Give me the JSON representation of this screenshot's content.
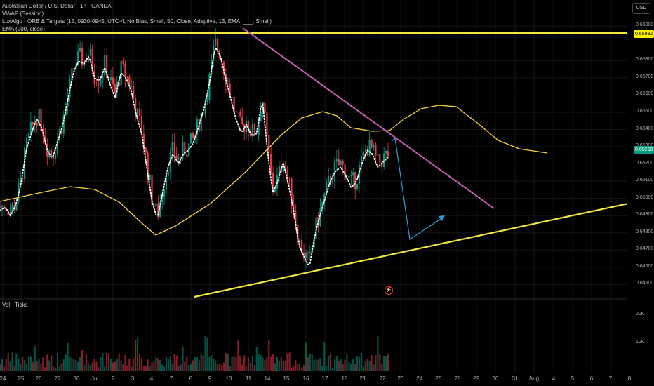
{
  "legend": {
    "symbol": "Australian Dollar / U.S. Dollar · 1h · OANDA",
    "vwap": "VWAP (Session)",
    "luxalgo": "LuxAlgo - ORB & Targets (15, 0930-0945, UTC-4, No Bias, Small, 50, Close, Adaptive, 13, EMA, ___, Small)",
    "ema": "EMA (200, close)"
  },
  "volume_label": "Vol · Ticks",
  "currency": "USD",
  "price_tags": {
    "resistance": {
      "label": "0.65932",
      "color": "#fff200",
      "text_color": "#000000"
    },
    "last": {
      "label": "0.65258",
      "color": "#089981",
      "text_color": "#ffffff"
    }
  },
  "marker_icon": "lightning-icon",
  "colors": {
    "up": "#089981",
    "down": "#f23645",
    "yellow": "#f0e641",
    "ema": "#f5d33a",
    "trendline_pink": "#c75fb0",
    "projection": "#2a9fd6",
    "vwap": "#ffffff"
  },
  "chart_data": {
    "type": "candlestick",
    "x_ticks": [
      "24",
      "25",
      "26",
      "27",
      "30",
      "Jul",
      "2",
      "3",
      "4",
      "7",
      "8",
      "9",
      "10",
      "11",
      "14",
      "15",
      "16",
      "17",
      "18",
      "21",
      "22",
      "23",
      "24",
      "25",
      "28",
      "29",
      "30",
      "31",
      "Aug",
      "4",
      "5",
      "6",
      "7",
      "8"
    ],
    "y_ticks": [
      "0.66000",
      "0.65800",
      "0.65700",
      "0.65600",
      "0.65500",
      "0.65400",
      "0.65300",
      "0.65200",
      "0.65100",
      "0.65000",
      "0.64900",
      "0.64800",
      "0.64700",
      "0.64600",
      "0.64500"
    ],
    "ylim": [
      0.6442,
      0.6605
    ],
    "volume_ticks": [
      "20K",
      "10K"
    ],
    "price_close_series": [
      0.6495,
      0.6497,
      0.6492,
      0.6498,
      0.651,
      0.653,
      0.654,
      0.6548,
      0.6543,
      0.653,
      0.6525,
      0.6535,
      0.6545,
      0.656,
      0.6575,
      0.6582,
      0.658,
      0.6585,
      0.6572,
      0.657,
      0.6578,
      0.6568,
      0.656,
      0.6575,
      0.6572,
      0.6565,
      0.655,
      0.654,
      0.652,
      0.65,
      0.649,
      0.6505,
      0.652,
      0.6528,
      0.6522,
      0.6528,
      0.653,
      0.6535,
      0.6545,
      0.6555,
      0.657,
      0.659,
      0.6585,
      0.6572,
      0.656,
      0.6548,
      0.654,
      0.6545,
      0.6538,
      0.654,
      0.656,
      0.653,
      0.6505,
      0.6512,
      0.6523,
      0.651,
      0.6495,
      0.6475,
      0.6468,
      0.6462,
      0.648,
      0.6492,
      0.6502,
      0.6512,
      0.6518,
      0.652,
      0.6515,
      0.6508,
      0.6512,
      0.6522,
      0.653,
      0.6528,
      0.652,
      0.6523,
      0.6526
    ],
    "ema_200": [
      {
        "x": "24",
        "y": 0.6492
      },
      {
        "x": "27",
        "y": 0.65
      },
      {
        "x": "Jul",
        "y": 0.6502
      },
      {
        "x": "3",
        "y": 0.65
      },
      {
        "x": "7",
        "y": 0.6483
      },
      {
        "x": "8",
        "y": 0.6485
      },
      {
        "x": "10",
        "y": 0.6508
      },
      {
        "x": "11",
        "y": 0.6525
      },
      {
        "x": "14",
        "y": 0.6537
      },
      {
        "x": "16",
        "y": 0.6551
      },
      {
        "x": "17",
        "y": 0.655
      },
      {
        "x": "18",
        "y": 0.6543
      },
      {
        "x": "21",
        "y": 0.6538
      },
      {
        "x": "22",
        "y": 0.6537
      },
      {
        "x": "24",
        "y": 0.655
      },
      {
        "x": "25",
        "y": 0.6552
      },
      {
        "x": "28",
        "y": 0.6548
      },
      {
        "x": "29",
        "y": 0.6537
      },
      {
        "x": "30",
        "y": 0.653
      },
      {
        "x": "31",
        "y": 0.6527
      },
      {
        "x": "Aug",
        "y": 0.6526
      }
    ],
    "lines": [
      {
        "name": "resistance",
        "y": 0.65932
      },
      {
        "name": "descending-trendline",
        "from": {
          "x": "10",
          "y": 0.6596
        },
        "to": {
          "x": "30",
          "y": 0.6492
        }
      },
      {
        "name": "ascending-trendline",
        "from": {
          "x": "8",
          "y": 0.6447
        },
        "to": {
          "x": "8",
          "y": 0.6497
        }
      },
      {
        "name": "projection",
        "points": [
          {
            "x": "22",
            "y": 0.6531
          },
          {
            "x": "23",
            "y": 0.6474
          },
          {
            "x": "25",
            "y": 0.6488
          }
        ]
      }
    ]
  }
}
